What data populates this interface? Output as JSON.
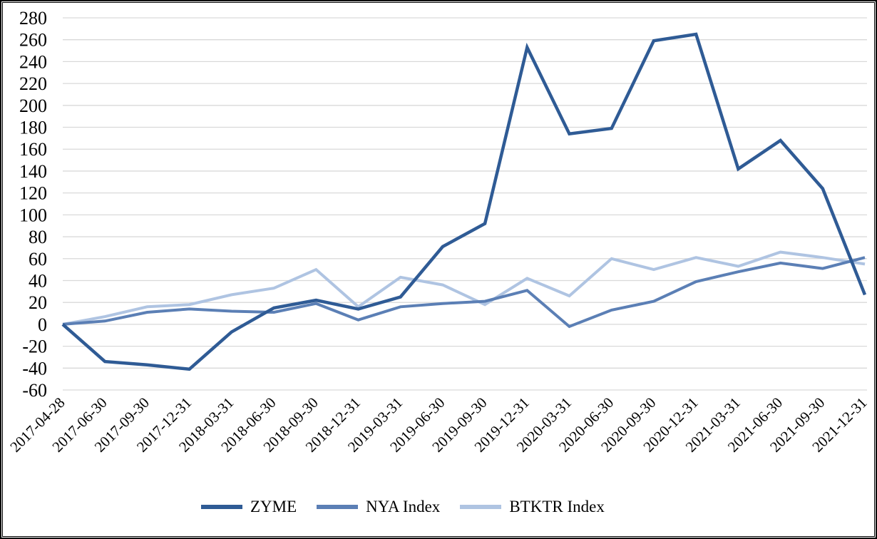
{
  "chart_data": {
    "type": "line",
    "title": "",
    "xlabel": "",
    "ylabel": "",
    "x_categories": [
      "2017-04-28",
      "2017-06-30",
      "2017-09-30",
      "2017-12-31",
      "2018-03-31",
      "2018-06-30",
      "2018-09-30",
      "2018-12-31",
      "2019-03-31",
      "2019-06-30",
      "2019-09-30",
      "2019-12-31",
      "2020-03-31",
      "2020-06-30",
      "2020-09-30",
      "2020-12-31",
      "2021-03-31",
      "2021-06-30",
      "2021-09-30",
      "2021-12-31"
    ],
    "series": [
      {
        "name": "ZYME",
        "color": "#2F5B95",
        "line_width": 4.5,
        "values": [
          0,
          -34,
          -37,
          -41,
          -7,
          15,
          22,
          14,
          25,
          71,
          92,
          253,
          174,
          179,
          259,
          265,
          142,
          168,
          124,
          27
        ]
      },
      {
        "name": "NYA Index",
        "color": "#5B7FB5",
        "line_width": 4,
        "values": [
          0,
          3,
          11,
          14,
          12,
          11,
          19,
          4,
          16,
          19,
          21,
          31,
          -2,
          13,
          21,
          39,
          48,
          56,
          51,
          61
        ]
      },
      {
        "name": "BTKTR Index",
        "color": "#AFC4E2",
        "line_width": 4,
        "values": [
          0,
          7,
          16,
          18,
          27,
          33,
          50,
          16,
          43,
          36,
          18,
          42,
          26,
          60,
          50,
          61,
          53,
          66,
          61,
          55
        ]
      }
    ],
    "ylim": [
      -60,
      280
    ],
    "ytick_step": 20,
    "grid": "horizontal-only",
    "gridline_color": "#D9D9D9",
    "axis_text_color": "#000000",
    "legend_position": "bottom"
  }
}
